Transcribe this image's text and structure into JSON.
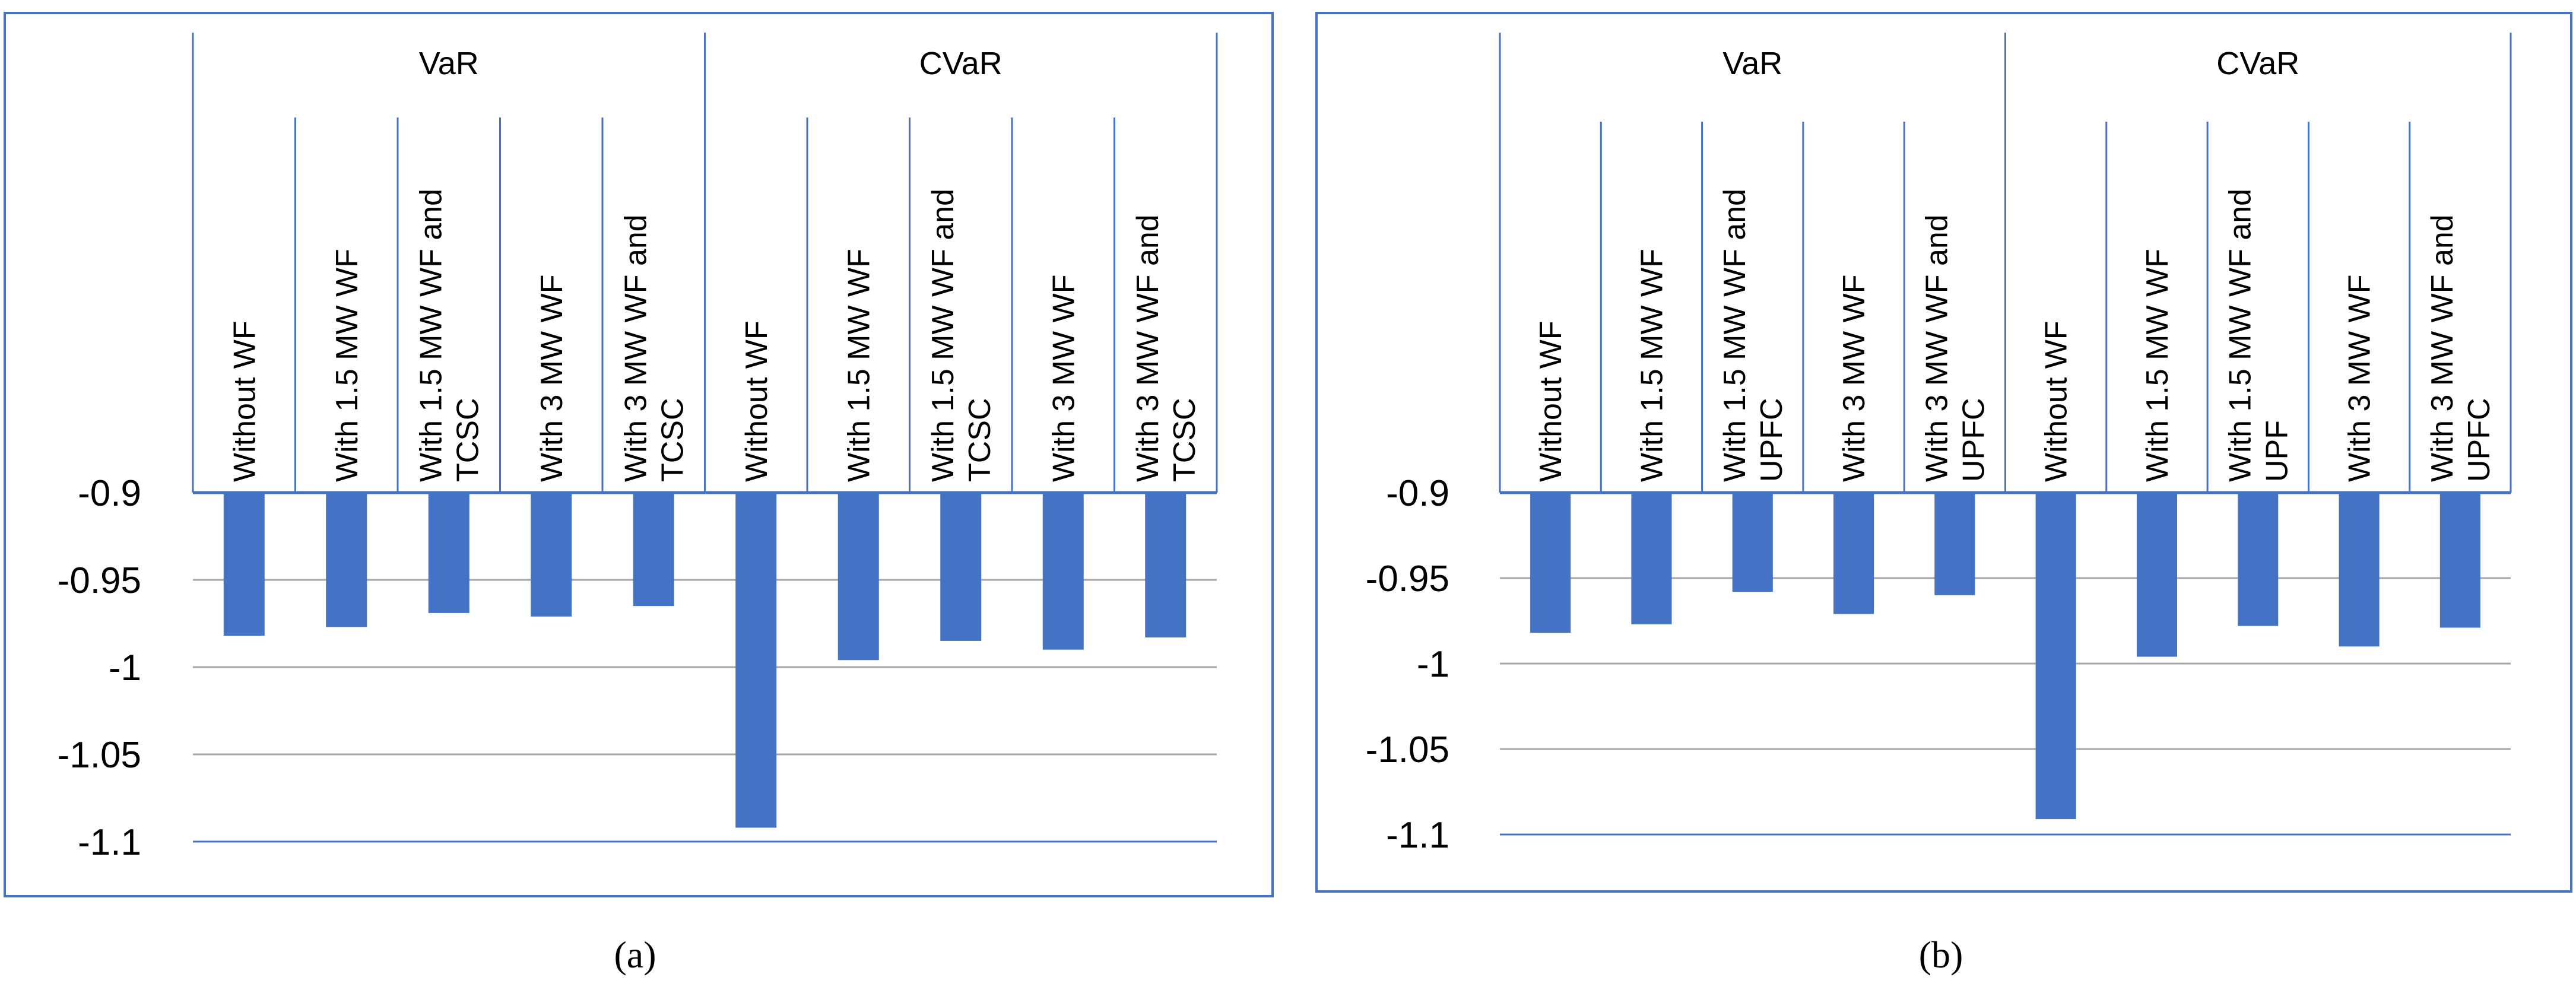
{
  "figure": {
    "captions": [
      "(a)",
      "(b)"
    ]
  },
  "style": {
    "bar_color": "#4472C4",
    "frame_color": "#4472C4",
    "grid_color": "#A6A6A6",
    "text_color": "#000000"
  },
  "chart_data": [
    {
      "type": "bar",
      "panel": "a",
      "title": "",
      "xlabel": "",
      "ylabel": "",
      "groups": [
        {
          "name": "VaR",
          "categories": [
            "Without WF",
            "With 1.5 MW WF",
            "With 1.5 MW WF and TCSC",
            "With 3 MW WF",
            "With 3 MW WF and TCSC"
          ]
        },
        {
          "name": "CVaR",
          "categories": [
            "Without WF",
            "With 1.5 MW WF",
            "With 1.5 MW WF and TCSC",
            "With 3 MW WF",
            "With 3 MW WF and TCSC"
          ]
        }
      ],
      "tick_labels": [
        [
          "Without WF"
        ],
        [
          "With 1.5 MW WF"
        ],
        [
          "With 1.5 MW WF and",
          "TCSC"
        ],
        [
          "With 3 MW WF"
        ],
        [
          "With 3 MW WF and",
          "TCSC"
        ]
      ],
      "values": [
        -0.982,
        -0.977,
        -0.969,
        -0.971,
        -0.965,
        -1.092,
        -0.996,
        -0.985,
        -0.99,
        -0.983
      ],
      "yticks": [
        "-0.9",
        "-0.95",
        "-1",
        "-1.05",
        "-1.1"
      ],
      "ylim": [
        -1.1,
        -0.9
      ],
      "grid": true,
      "legend": "none"
    },
    {
      "type": "bar",
      "panel": "b",
      "title": "",
      "xlabel": "",
      "ylabel": "",
      "groups": [
        {
          "name": "VaR",
          "categories": [
            "Without WF",
            "With 1.5 MW WF",
            "With 1.5 MW WF and UPFC",
            "With 3 MW WF",
            "With 3 MW WF and UPFC"
          ]
        },
        {
          "name": "CVaR",
          "categories": [
            "Without WF",
            "With 1.5 MW WF",
            "With 1.5 MW WF and UPF",
            "With 3 MW WF",
            "With 3 MW WF and UPFC"
          ]
        }
      ],
      "tick_labels": [
        [
          "Without WF"
        ],
        [
          "With 1.5 MW WF"
        ],
        [
          "With 1.5 MW WF and",
          "UPFC"
        ],
        [
          "With 3 MW WF"
        ],
        [
          "With 3 MW WF and",
          "UPFC"
        ],
        [
          "Without WF"
        ],
        [
          "With 1.5 MW WF"
        ],
        [
          "With 1.5 MW WF and",
          "UPF"
        ],
        [
          "With 3 MW WF"
        ],
        [
          "With 3 MW WF and",
          "UPFC"
        ]
      ],
      "values": [
        -0.982,
        -0.977,
        -0.958,
        -0.971,
        -0.96,
        -1.091,
        -0.996,
        -0.978,
        -0.99,
        -0.979
      ],
      "yticks": [
        "-0.9",
        "-0.95",
        "-1",
        "-1.05",
        "-1.1"
      ],
      "ylim": [
        -1.1,
        -0.9
      ],
      "grid": true,
      "legend": "none"
    }
  ]
}
